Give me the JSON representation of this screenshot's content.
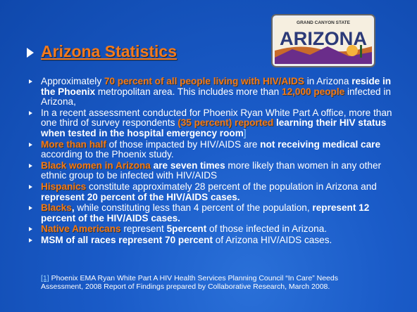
{
  "slide": {
    "title": "Arizona Statistics",
    "plate": {
      "top": "GRAND CANYON STATE",
      "name": "ARIZONA"
    },
    "bullets": [
      [
        {
          "text": "Approximately ",
          "style": "normal"
        },
        {
          "text": "70 percent of all people living with HIV/AIDS",
          "style": "orange"
        },
        {
          "text": " in Arizona ",
          "style": "normal"
        },
        {
          "text": "reside in the Phoenix",
          "style": "bold"
        },
        {
          "text": " metropolitan area.  This includes more than ",
          "style": "normal"
        },
        {
          "text": "12,000 people",
          "style": "orange"
        },
        {
          "text": " infected in Arizona,",
          "style": "normal"
        }
      ],
      [
        {
          "text": "In a recent assessment conducted for Phoenix Ryan White Part A office, more than one third of survey respondents ",
          "style": "normal"
        },
        {
          "text": "(35 percent) reported",
          "style": "orange"
        },
        {
          "text": " learning their HIV status when tested in the hospital emergency room",
          "style": "bold"
        },
        {
          "text": "]",
          "style": "link"
        }
      ],
      [
        {
          "text": "More than half",
          "style": "orange"
        },
        {
          "text": " of those impacted by HIV/AIDS are ",
          "style": "normal"
        },
        {
          "text": "not receiving medical care",
          "style": "bold"
        },
        {
          "text": " according to the Phoenix study.",
          "style": "normal"
        }
      ],
      [
        {
          "text": "Black women in Arizona",
          "style": "orange"
        },
        {
          "text": " are seven times",
          "style": "bold"
        },
        {
          "text": " more likely than women in any other ethnic group to be infected with HIV/AIDS",
          "style": "normal"
        }
      ],
      [
        {
          "text": "Hispanics",
          "style": "orange"
        },
        {
          "text": " constitute approximately 28 percent of the population in Arizona and ",
          "style": "normal"
        },
        {
          "text": "represent 20 percent of the HIV/AIDS cases.",
          "style": "bold"
        }
      ],
      [
        {
          "text": "Blacks",
          "style": "orange"
        },
        {
          "text": ",",
          "style": "bold"
        },
        {
          "text": " while constituting less than 4 percent of the population, ",
          "style": "normal"
        },
        {
          "text": "represent 12 percent of the HIV/AIDS cases.",
          "style": "bold"
        }
      ],
      [
        {
          "text": "Native Americans",
          "style": "orange"
        },
        {
          "text": " represent ",
          "style": "normal"
        },
        {
          "text": "5percent",
          "style": "bold"
        },
        {
          "text": " of those infected in Arizona.",
          "style": "normal"
        }
      ],
      [
        {
          "text": "MSM of all races represent 70 percent",
          "style": "bold"
        },
        {
          "text": " of Arizona HIV/AIDS cases.",
          "style": "normal"
        }
      ]
    ],
    "footnote": [
      {
        "text": "[1]",
        "style": "link"
      },
      {
        "text": " Phoenix EMA Ryan White Part A HIV Health Services Planning Council “In Care” Needs Assessment, 2008 Report of Findings prepared by Collaborative Research, March 2008.",
        "style": "normal"
      }
    ]
  }
}
